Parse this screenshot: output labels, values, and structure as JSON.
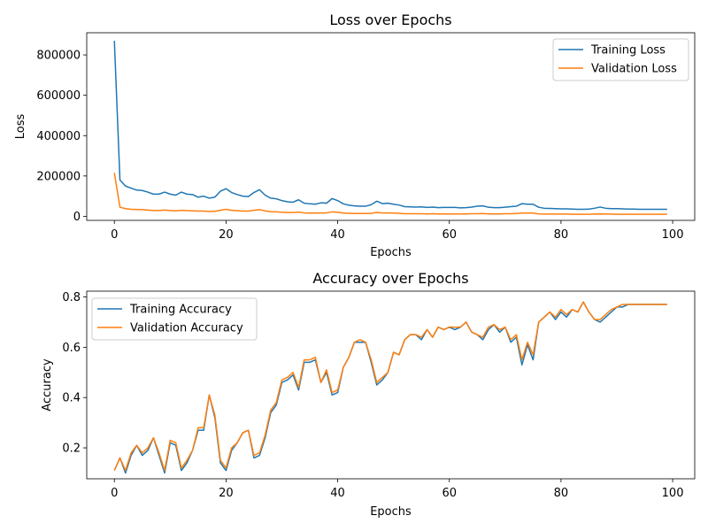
{
  "colors": {
    "training": "#1f77b4",
    "validation": "#ff7f0e"
  },
  "chart_data": [
    {
      "type": "line",
      "title": "Loss over Epochs",
      "xlabel": "Epochs",
      "ylabel": "Loss",
      "xlim": [
        -4.95,
        103.95
      ],
      "ylim": [
        -20000,
        910000
      ],
      "xticks": [
        0,
        20,
        40,
        60,
        80,
        100
      ],
      "yticks": [
        0,
        200000,
        400000,
        600000,
        800000
      ],
      "xtick_labels": [
        "0",
        "20",
        "40",
        "60",
        "80",
        "100"
      ],
      "ytick_labels": [
        "0",
        "200000",
        "400000",
        "600000",
        "800000"
      ],
      "legend": "top-right",
      "grid": false,
      "x": [
        0,
        1,
        2,
        3,
        4,
        5,
        6,
        7,
        8,
        9,
        10,
        11,
        12,
        13,
        14,
        15,
        16,
        17,
        18,
        19,
        20,
        21,
        22,
        23,
        24,
        25,
        26,
        27,
        28,
        29,
        30,
        31,
        32,
        33,
        34,
        35,
        36,
        37,
        38,
        39,
        40,
        41,
        42,
        43,
        44,
        45,
        46,
        47,
        48,
        49,
        50,
        51,
        52,
        53,
        54,
        55,
        56,
        57,
        58,
        59,
        60,
        61,
        62,
        63,
        64,
        65,
        66,
        67,
        68,
        69,
        70,
        71,
        72,
        73,
        74,
        75,
        76,
        77,
        78,
        79,
        80,
        81,
        82,
        83,
        84,
        85,
        86,
        87,
        88,
        89,
        90,
        91,
        92,
        93,
        94,
        95,
        96,
        97,
        98,
        99
      ],
      "series": [
        {
          "name": "Training Loss",
          "values": [
            870000,
            180000,
            150000,
            140000,
            130000,
            128000,
            120000,
            110000,
            110000,
            120000,
            110000,
            105000,
            120000,
            110000,
            108000,
            95000,
            100000,
            90000,
            95000,
            125000,
            137000,
            118000,
            108000,
            100000,
            98000,
            118000,
            132000,
            105000,
            90000,
            87000,
            78000,
            72000,
            70000,
            82000,
            65000,
            62000,
            60000,
            67000,
            65000,
            88000,
            78000,
            62000,
            55000,
            52000,
            50000,
            50000,
            58000,
            75000,
            63000,
            65000,
            60000,
            56000,
            48000,
            47000,
            46000,
            47000,
            44000,
            46000,
            43000,
            44000,
            44000,
            44000,
            42000,
            43000,
            46000,
            50000,
            52000,
            45000,
            43000,
            43000,
            45000,
            48000,
            50000,
            63000,
            60000,
            60000,
            45000,
            40000,
            39000,
            38000,
            37000,
            37000,
            36000,
            35000,
            35000,
            36000,
            40000,
            46000,
            40000,
            38000,
            38000,
            37000,
            36000,
            36000,
            35000,
            35000,
            35000,
            35000,
            35000,
            35000
          ]
        },
        {
          "name": "Validation Loss",
          "values": [
            215000,
            45000,
            38000,
            35000,
            34000,
            33000,
            31000,
            29000,
            29000,
            31000,
            29000,
            27000,
            30000,
            28000,
            27000,
            26000,
            26000,
            24000,
            25000,
            30000,
            35000,
            30000,
            28000,
            26000,
            26000,
            30000,
            33000,
            27000,
            23000,
            22000,
            20000,
            19000,
            19000,
            21000,
            17000,
            16000,
            16000,
            17000,
            17000,
            22000,
            20000,
            16000,
            15000,
            14000,
            14000,
            14000,
            15000,
            19000,
            17000,
            17000,
            16000,
            15000,
            13000,
            13000,
            13000,
            13000,
            12000,
            13000,
            12000,
            12000,
            12000,
            12000,
            12000,
            12000,
            13000,
            13000,
            14000,
            12000,
            12000,
            12000,
            13000,
            13000,
            14000,
            16000,
            16000,
            16000,
            12000,
            11000,
            11000,
            11000,
            11000,
            11000,
            10000,
            10000,
            10000,
            10000,
            11000,
            12000,
            11000,
            11000,
            10000,
            10000,
            10000,
            10000,
            10000,
            10000,
            10000,
            10000,
            10000,
            10000
          ]
        }
      ]
    },
    {
      "type": "line",
      "title": "Accuracy over Epochs",
      "xlabel": "Epochs",
      "ylabel": "Accuracy",
      "xlim": [
        -4.95,
        103.95
      ],
      "ylim": [
        0.077,
        0.823
      ],
      "xticks": [
        0,
        20,
        40,
        60,
        80,
        100
      ],
      "yticks": [
        0.2,
        0.4,
        0.6,
        0.8
      ],
      "xtick_labels": [
        "0",
        "20",
        "40",
        "60",
        "80",
        "100"
      ],
      "ytick_labels": [
        "0.2",
        "0.4",
        "0.6",
        "0.8"
      ],
      "legend": "top-left",
      "grid": false,
      "x": [
        0,
        1,
        2,
        3,
        4,
        5,
        6,
        7,
        8,
        9,
        10,
        11,
        12,
        13,
        14,
        15,
        16,
        17,
        18,
        19,
        20,
        21,
        22,
        23,
        24,
        25,
        26,
        27,
        28,
        29,
        30,
        31,
        32,
        33,
        34,
        35,
        36,
        37,
        38,
        39,
        40,
        41,
        42,
        43,
        44,
        45,
        46,
        47,
        48,
        49,
        50,
        51,
        52,
        53,
        54,
        55,
        56,
        57,
        58,
        59,
        60,
        61,
        62,
        63,
        64,
        65,
        66,
        67,
        68,
        69,
        70,
        71,
        72,
        73,
        74,
        75,
        76,
        77,
        78,
        79,
        80,
        81,
        82,
        83,
        84,
        85,
        86,
        87,
        88,
        89,
        90,
        91,
        92,
        93,
        94,
        95,
        96,
        97,
        98,
        99
      ],
      "series": [
        {
          "name": "Training Accuracy",
          "values": [
            0.11,
            0.16,
            0.1,
            0.17,
            0.21,
            0.17,
            0.19,
            0.24,
            0.17,
            0.1,
            0.22,
            0.21,
            0.11,
            0.14,
            0.19,
            0.27,
            0.27,
            0.41,
            0.32,
            0.14,
            0.11,
            0.19,
            0.22,
            0.26,
            0.27,
            0.16,
            0.17,
            0.24,
            0.34,
            0.37,
            0.46,
            0.47,
            0.49,
            0.43,
            0.54,
            0.54,
            0.55,
            0.46,
            0.5,
            0.41,
            0.42,
            0.52,
            0.56,
            0.62,
            0.62,
            0.62,
            0.54,
            0.45,
            0.47,
            0.5,
            0.58,
            0.57,
            0.63,
            0.65,
            0.65,
            0.63,
            0.67,
            0.64,
            0.68,
            0.67,
            0.68,
            0.67,
            0.68,
            0.7,
            0.66,
            0.65,
            0.63,
            0.67,
            0.69,
            0.66,
            0.68,
            0.62,
            0.64,
            0.53,
            0.61,
            0.55,
            0.7,
            0.72,
            0.74,
            0.71,
            0.74,
            0.72,
            0.75,
            0.74,
            0.78,
            0.74,
            0.71,
            0.7,
            0.72,
            0.74,
            0.76,
            0.76,
            0.77,
            0.77,
            0.77,
            0.77,
            0.77,
            0.77,
            0.77,
            0.77
          ]
        },
        {
          "name": "Validation Accuracy",
          "values": [
            0.11,
            0.16,
            0.11,
            0.18,
            0.21,
            0.18,
            0.2,
            0.24,
            0.18,
            0.11,
            0.23,
            0.22,
            0.12,
            0.15,
            0.19,
            0.28,
            0.28,
            0.41,
            0.33,
            0.15,
            0.12,
            0.2,
            0.22,
            0.26,
            0.27,
            0.17,
            0.18,
            0.25,
            0.35,
            0.38,
            0.47,
            0.48,
            0.5,
            0.44,
            0.55,
            0.55,
            0.56,
            0.46,
            0.51,
            0.42,
            0.43,
            0.52,
            0.56,
            0.62,
            0.63,
            0.62,
            0.55,
            0.46,
            0.48,
            0.5,
            0.58,
            0.57,
            0.63,
            0.65,
            0.65,
            0.64,
            0.67,
            0.64,
            0.68,
            0.67,
            0.68,
            0.68,
            0.68,
            0.7,
            0.66,
            0.65,
            0.64,
            0.68,
            0.69,
            0.67,
            0.68,
            0.63,
            0.65,
            0.55,
            0.62,
            0.57,
            0.7,
            0.72,
            0.74,
            0.72,
            0.75,
            0.73,
            0.75,
            0.74,
            0.78,
            0.74,
            0.71,
            0.71,
            0.73,
            0.75,
            0.76,
            0.77,
            0.77,
            0.77,
            0.77,
            0.77,
            0.77,
            0.77,
            0.77,
            0.77
          ]
        }
      ]
    }
  ]
}
